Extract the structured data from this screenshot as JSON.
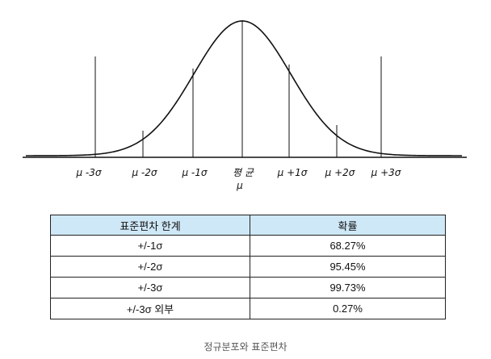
{
  "diagram": {
    "labels": {
      "m3": "μ -3σ",
      "m2": "μ -2σ",
      "m1": "μ -1σ",
      "mean_word": "평 균",
      "mean_symbol": "μ",
      "p1": "μ +1σ",
      "p2": "μ +2σ",
      "p3": "μ +3σ"
    }
  },
  "table": {
    "headers": [
      "표준편차 한계",
      "확률"
    ],
    "rows": [
      [
        "+/-1σ",
        "68.27%"
      ],
      [
        "+/-2σ",
        "95.45%"
      ],
      [
        "+/-3σ",
        "99.73%"
      ],
      [
        "+/-3σ 외부",
        "0.27%"
      ]
    ]
  },
  "caption": "정규분포와 표준편차"
}
